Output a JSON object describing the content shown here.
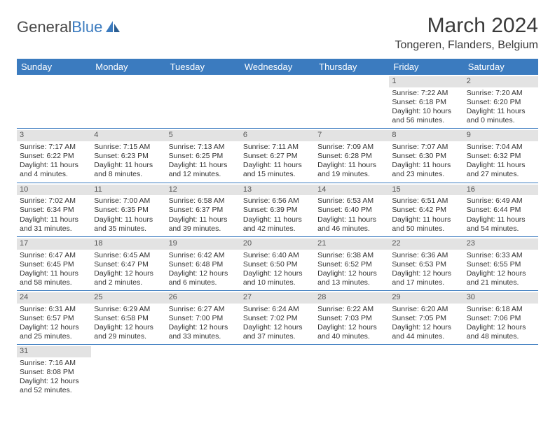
{
  "logo": {
    "text1": "General",
    "text2": "Blue"
  },
  "title": "March 2024",
  "location": "Tongeren, Flanders, Belgium",
  "colors": {
    "header_bg": "#3b7bbf",
    "header_text": "#ffffff",
    "daynum_bg": "#e3e3e3",
    "border": "#3b7bbf",
    "text": "#333333"
  },
  "weekdays": [
    "Sunday",
    "Monday",
    "Tuesday",
    "Wednesday",
    "Thursday",
    "Friday",
    "Saturday"
  ],
  "weeks": [
    [
      null,
      null,
      null,
      null,
      null,
      {
        "n": "1",
        "rise": "Sunrise: 7:22 AM",
        "set": "Sunset: 6:18 PM",
        "day": "Daylight: 10 hours and 56 minutes."
      },
      {
        "n": "2",
        "rise": "Sunrise: 7:20 AM",
        "set": "Sunset: 6:20 PM",
        "day": "Daylight: 11 hours and 0 minutes."
      }
    ],
    [
      {
        "n": "3",
        "rise": "Sunrise: 7:17 AM",
        "set": "Sunset: 6:22 PM",
        "day": "Daylight: 11 hours and 4 minutes."
      },
      {
        "n": "4",
        "rise": "Sunrise: 7:15 AM",
        "set": "Sunset: 6:23 PM",
        "day": "Daylight: 11 hours and 8 minutes."
      },
      {
        "n": "5",
        "rise": "Sunrise: 7:13 AM",
        "set": "Sunset: 6:25 PM",
        "day": "Daylight: 11 hours and 12 minutes."
      },
      {
        "n": "6",
        "rise": "Sunrise: 7:11 AM",
        "set": "Sunset: 6:27 PM",
        "day": "Daylight: 11 hours and 15 minutes."
      },
      {
        "n": "7",
        "rise": "Sunrise: 7:09 AM",
        "set": "Sunset: 6:28 PM",
        "day": "Daylight: 11 hours and 19 minutes."
      },
      {
        "n": "8",
        "rise": "Sunrise: 7:07 AM",
        "set": "Sunset: 6:30 PM",
        "day": "Daylight: 11 hours and 23 minutes."
      },
      {
        "n": "9",
        "rise": "Sunrise: 7:04 AM",
        "set": "Sunset: 6:32 PM",
        "day": "Daylight: 11 hours and 27 minutes."
      }
    ],
    [
      {
        "n": "10",
        "rise": "Sunrise: 7:02 AM",
        "set": "Sunset: 6:34 PM",
        "day": "Daylight: 11 hours and 31 minutes."
      },
      {
        "n": "11",
        "rise": "Sunrise: 7:00 AM",
        "set": "Sunset: 6:35 PM",
        "day": "Daylight: 11 hours and 35 minutes."
      },
      {
        "n": "12",
        "rise": "Sunrise: 6:58 AM",
        "set": "Sunset: 6:37 PM",
        "day": "Daylight: 11 hours and 39 minutes."
      },
      {
        "n": "13",
        "rise": "Sunrise: 6:56 AM",
        "set": "Sunset: 6:39 PM",
        "day": "Daylight: 11 hours and 42 minutes."
      },
      {
        "n": "14",
        "rise": "Sunrise: 6:53 AM",
        "set": "Sunset: 6:40 PM",
        "day": "Daylight: 11 hours and 46 minutes."
      },
      {
        "n": "15",
        "rise": "Sunrise: 6:51 AM",
        "set": "Sunset: 6:42 PM",
        "day": "Daylight: 11 hours and 50 minutes."
      },
      {
        "n": "16",
        "rise": "Sunrise: 6:49 AM",
        "set": "Sunset: 6:44 PM",
        "day": "Daylight: 11 hours and 54 minutes."
      }
    ],
    [
      {
        "n": "17",
        "rise": "Sunrise: 6:47 AM",
        "set": "Sunset: 6:45 PM",
        "day": "Daylight: 11 hours and 58 minutes."
      },
      {
        "n": "18",
        "rise": "Sunrise: 6:45 AM",
        "set": "Sunset: 6:47 PM",
        "day": "Daylight: 12 hours and 2 minutes."
      },
      {
        "n": "19",
        "rise": "Sunrise: 6:42 AM",
        "set": "Sunset: 6:48 PM",
        "day": "Daylight: 12 hours and 6 minutes."
      },
      {
        "n": "20",
        "rise": "Sunrise: 6:40 AM",
        "set": "Sunset: 6:50 PM",
        "day": "Daylight: 12 hours and 10 minutes."
      },
      {
        "n": "21",
        "rise": "Sunrise: 6:38 AM",
        "set": "Sunset: 6:52 PM",
        "day": "Daylight: 12 hours and 13 minutes."
      },
      {
        "n": "22",
        "rise": "Sunrise: 6:36 AM",
        "set": "Sunset: 6:53 PM",
        "day": "Daylight: 12 hours and 17 minutes."
      },
      {
        "n": "23",
        "rise": "Sunrise: 6:33 AM",
        "set": "Sunset: 6:55 PM",
        "day": "Daylight: 12 hours and 21 minutes."
      }
    ],
    [
      {
        "n": "24",
        "rise": "Sunrise: 6:31 AM",
        "set": "Sunset: 6:57 PM",
        "day": "Daylight: 12 hours and 25 minutes."
      },
      {
        "n": "25",
        "rise": "Sunrise: 6:29 AM",
        "set": "Sunset: 6:58 PM",
        "day": "Daylight: 12 hours and 29 minutes."
      },
      {
        "n": "26",
        "rise": "Sunrise: 6:27 AM",
        "set": "Sunset: 7:00 PM",
        "day": "Daylight: 12 hours and 33 minutes."
      },
      {
        "n": "27",
        "rise": "Sunrise: 6:24 AM",
        "set": "Sunset: 7:02 PM",
        "day": "Daylight: 12 hours and 37 minutes."
      },
      {
        "n": "28",
        "rise": "Sunrise: 6:22 AM",
        "set": "Sunset: 7:03 PM",
        "day": "Daylight: 12 hours and 40 minutes."
      },
      {
        "n": "29",
        "rise": "Sunrise: 6:20 AM",
        "set": "Sunset: 7:05 PM",
        "day": "Daylight: 12 hours and 44 minutes."
      },
      {
        "n": "30",
        "rise": "Sunrise: 6:18 AM",
        "set": "Sunset: 7:06 PM",
        "day": "Daylight: 12 hours and 48 minutes."
      }
    ],
    [
      {
        "n": "31",
        "rise": "Sunrise: 7:16 AM",
        "set": "Sunset: 8:08 PM",
        "day": "Daylight: 12 hours and 52 minutes."
      },
      null,
      null,
      null,
      null,
      null,
      null
    ]
  ]
}
